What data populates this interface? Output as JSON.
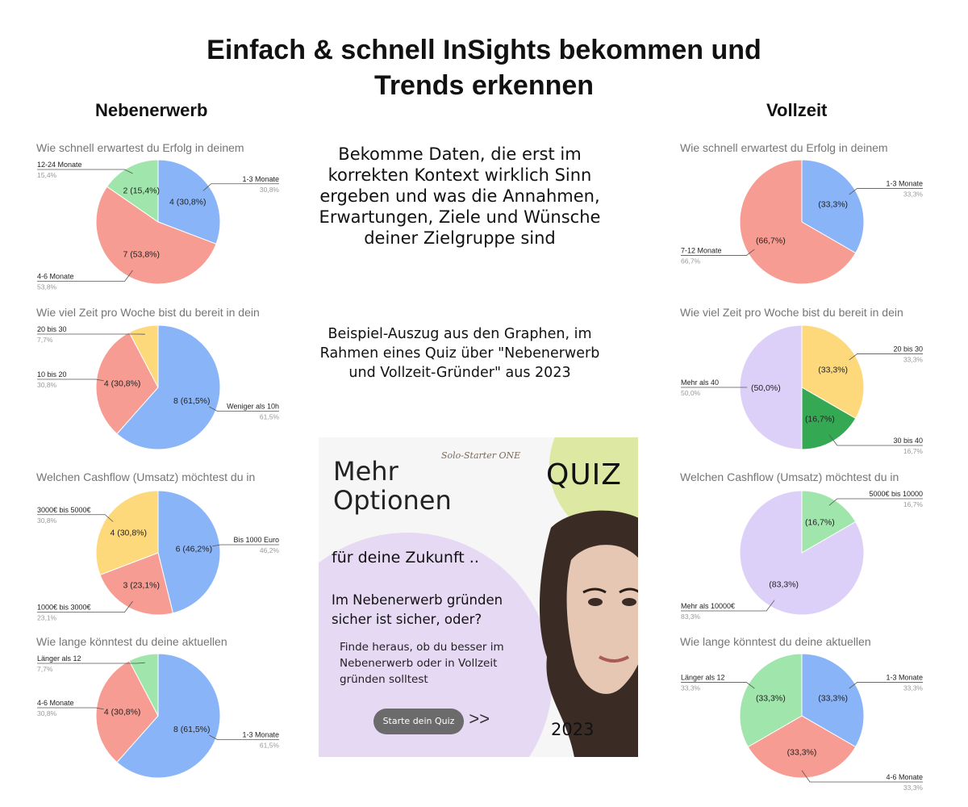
{
  "title": "Einfach & schnell InSights bekommen und Trends erkennen",
  "left_heading": "Nebenerwerb",
  "right_heading": "Vollzeit",
  "intro_text": "Bekomme Daten, die erst im korrekten Kontext wirklich Sinn ergeben und was die Annahmen, Erwartungen, Ziele und Wünsche deiner Zielgruppe sind",
  "excerpt_text": "Beispiel-Auszug aus den Graphen, im Rahmen eines Quiz über \"Nebenerwerb und Vollzeit-Gründer\" aus 2023",
  "promo": {
    "brand": "Solo-Starter ONE",
    "quiz_label": "QUIZ",
    "headline": "Mehr Optionen",
    "subline": "für deine Zukunft ..",
    "question": "Im Nebenerwerb gründen sicher ist sicher, oder?",
    "body": "Finde heraus, ob du besser im Nebenerwerb oder in Vollzeit gründen solltest",
    "button": "Starte dein Quiz",
    "arrow": ">>",
    "year": "2023",
    "colors": {
      "purple_blob": "#e6d9f3",
      "green_blob": "#dde9a3",
      "button": "#6b6b6b"
    }
  },
  "chart_data": [
    {
      "type": "pie",
      "group": "Nebenerwerb",
      "title": "Wie schnell erwartest du Erfolg in deinem",
      "slices": [
        {
          "label": "1-3 Monate",
          "value": 4,
          "inner": "4 (30,8%)",
          "pct": "30,8%",
          "color": "#8ab4f8"
        },
        {
          "label": "4-6 Monate",
          "value": 7,
          "inner": "7 (53,8%)",
          "pct": "53,8%",
          "color": "#f79c92"
        },
        {
          "label": "12-24 Monate",
          "value": 2,
          "inner": "2 (15,4%)",
          "pct": "15,4%",
          "color": "#a0e5ac"
        }
      ]
    },
    {
      "type": "pie",
      "group": "Nebenerwerb",
      "title": "Wie viel Zeit pro Woche bist du bereit in dein",
      "slices": [
        {
          "label": "Weniger als 10h",
          "value": 8,
          "inner": "8 (61,5%)",
          "pct": "61,5%",
          "color": "#8ab4f8"
        },
        {
          "label": "10 bis 20",
          "value": 4,
          "inner": "4 (30,8%)",
          "pct": "30,8%",
          "color": "#f79c92"
        },
        {
          "label": "20 bis 30",
          "value": 1,
          "inner": "",
          "pct": "7,7%",
          "color": "#fdd97c"
        }
      ]
    },
    {
      "type": "pie",
      "group": "Nebenerwerb",
      "title": "Welchen Cashflow (Umsatz) möchtest du in",
      "slices": [
        {
          "label": "Bis 1000 Euro",
          "value": 6,
          "inner": "6 (46,2%)",
          "pct": "46,2%",
          "color": "#8ab4f8"
        },
        {
          "label": "1000€ bis 3000€",
          "value": 3,
          "inner": "3 (23,1%)",
          "pct": "23,1%",
          "color": "#f79c92"
        },
        {
          "label": "3000€ bis 5000€",
          "value": 4,
          "inner": "4 (30,8%)",
          "pct": "30,8%",
          "color": "#fdd97c"
        }
      ]
    },
    {
      "type": "pie",
      "group": "Nebenerwerb",
      "title": "Wie lange könntest du deine aktuellen",
      "slices": [
        {
          "label": "1-3 Monate",
          "value": 8,
          "inner": "8 (61,5%)",
          "pct": "61,5%",
          "color": "#8ab4f8"
        },
        {
          "label": "4-6 Monate",
          "value": 4,
          "inner": "4 (30,8%)",
          "pct": "30,8%",
          "color": "#f79c92"
        },
        {
          "label": "Länger als 12",
          "value": 1,
          "inner": "",
          "pct": "7,7%",
          "color": "#a0e5ac"
        }
      ]
    },
    {
      "type": "pie",
      "group": "Vollzeit",
      "title": "Wie schnell erwartest du Erfolg in deinem",
      "slices": [
        {
          "label": "1-3 Monate",
          "value": 1,
          "inner": "(33,3%)",
          "pct": "33,3%",
          "color": "#8ab4f8"
        },
        {
          "label": "7-12 Monate",
          "value": 2,
          "inner": "(66,7%)",
          "pct": "66,7%",
          "color": "#f79c92"
        }
      ]
    },
    {
      "type": "pie",
      "group": "Vollzeit",
      "title": "Wie viel Zeit pro Woche bist du bereit in dein",
      "slices": [
        {
          "label": "20 bis 30",
          "value": 2,
          "inner": "(33,3%)",
          "pct": "33,3%",
          "color": "#fdd97c"
        },
        {
          "label": "30 bis 40",
          "value": 1,
          "inner": "(16,7%)",
          "pct": "16,7%",
          "color": "#34a853"
        },
        {
          "label": "Mehr als 40",
          "value": 3,
          "inner": "(50,0%)",
          "pct": "50,0%",
          "color": "#ddd0f8"
        }
      ]
    },
    {
      "type": "pie",
      "group": "Vollzeit",
      "title": "Welchen Cashflow (Umsatz) möchtest du in",
      "slices": [
        {
          "label": "5000€ bis 10000",
          "value": 1,
          "inner": "(16,7%)",
          "pct": "16,7%",
          "color": "#a0e5ac"
        },
        {
          "label": "Mehr als 10000€",
          "value": 5,
          "inner": "(83,3%)",
          "pct": "83,3%",
          "color": "#ddd0f8"
        }
      ]
    },
    {
      "type": "pie",
      "group": "Vollzeit",
      "title": "Wie lange könntest du deine aktuellen",
      "slices": [
        {
          "label": "1-3 Monate",
          "value": 1,
          "inner": "(33,3%)",
          "pct": "33,3%",
          "color": "#8ab4f8"
        },
        {
          "label": "4-6 Monate",
          "value": 1,
          "inner": "(33,3%)",
          "pct": "33,3%",
          "color": "#f79c92"
        },
        {
          "label": "Länger als 12",
          "value": 1,
          "inner": "(33,3%)",
          "pct": "33,3%",
          "color": "#a0e5ac"
        }
      ]
    }
  ]
}
